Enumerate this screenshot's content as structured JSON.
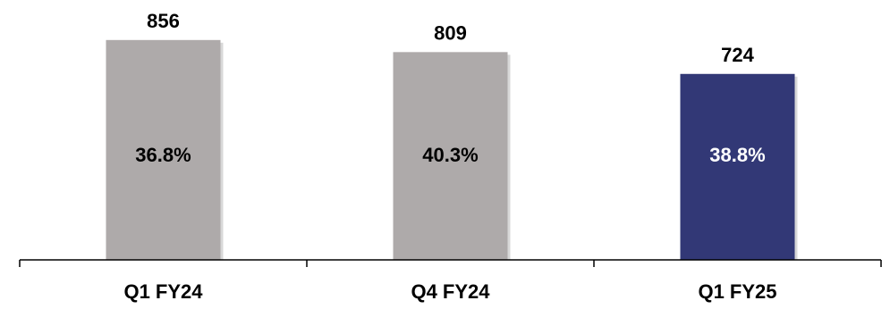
{
  "chart_data": {
    "type": "bar",
    "title": "",
    "xlabel": "",
    "ylabel": "",
    "categories": [
      "Q1 FY24",
      "Q4 FY24",
      "Q1 FY25"
    ],
    "values": [
      856,
      809,
      724
    ],
    "value_labels": [
      "856",
      "809",
      "724"
    ],
    "inner_labels": [
      "36.8%",
      "40.3%",
      "38.8%"
    ],
    "inner_values": [
      36.8,
      40.3,
      38.8
    ],
    "ylim": [
      0,
      1000
    ],
    "grid": false,
    "legend": "none",
    "colors": {
      "default_bar": "#aeaaaa",
      "highlight_bar": "#323876",
      "default_inner_text": "#000000",
      "highlight_inner_text": "#ffffff",
      "axis": "#000000"
    },
    "highlight_index": 2
  }
}
